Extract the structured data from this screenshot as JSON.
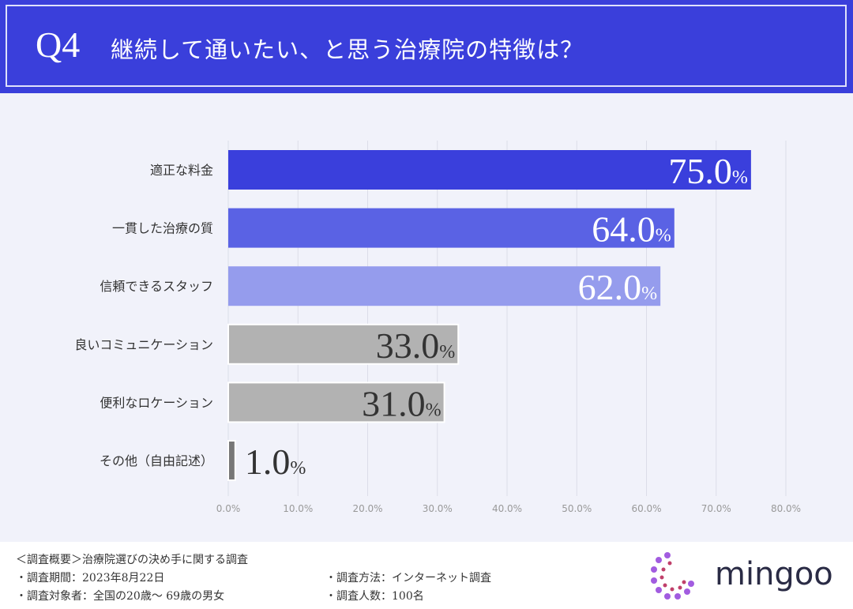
{
  "header": {
    "q": "Q4",
    "title": "継続して通いたい、と思う治療院の特徴は？"
  },
  "chart_data": {
    "type": "bar",
    "orientation": "horizontal",
    "categories": [
      "適正な料金",
      "一貫した治療の質",
      "信頼できるスタッフ",
      "良いコミュニケーション",
      "便利なロケーション",
      "その他（自由記述）"
    ],
    "values": [
      75.0,
      64.0,
      62.0,
      33.0,
      31.0,
      1.0
    ],
    "data_labels": [
      "75.0",
      "64.0",
      "62.0",
      "33.0",
      "31.0",
      "1.0"
    ],
    "data_label_unit": "%",
    "colors": [
      "#3a3fdc",
      "#5a62e4",
      "#959ced",
      "#b2b2b2",
      "#b2b2b2",
      "#777777"
    ],
    "xlim": [
      0,
      80
    ],
    "xticks": [
      "0.0%",
      "10.0%",
      "20.0%",
      "30.0%",
      "40.0%",
      "50.0%",
      "60.0%",
      "70.0%",
      "80.0%"
    ],
    "grid": true
  },
  "footer": {
    "overview": "＜調査概要＞治療院選びの決め手に関する調査",
    "period": "・調査期間：2023年8月22日",
    "target": "・調査対象者：全国の20歳〜 69歳の男女",
    "method": "・調査方法：インターネット調査",
    "count": "・調査人数：100名",
    "logo": "mingoo"
  }
}
